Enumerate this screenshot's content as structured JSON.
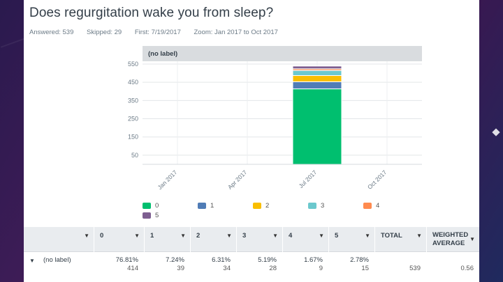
{
  "question": {
    "title": "Does regurgitation wake you from sleep?",
    "answered": "Answered: 539",
    "skipped": "Skipped: 29",
    "first": "First: 7/19/2017",
    "zoom": "Zoom: Jan 2017 to Oct 2017"
  },
  "chart_data": {
    "type": "bar",
    "stacked": true,
    "panel_label": "(no label)",
    "categories": [
      "Jan 2017",
      "Apr 2017",
      "Jul 2017",
      "Oct 2017"
    ],
    "ylim": [
      0,
      550
    ],
    "yticks": [
      50,
      150,
      250,
      350,
      450,
      550
    ],
    "ytick_labels": [
      "50",
      "150",
      "250",
      "350",
      "450",
      "550"
    ],
    "series": [
      {
        "name": "0",
        "color": "#00bf6f",
        "values": [
          0,
          0,
          414,
          0
        ]
      },
      {
        "name": "1",
        "color": "#507cb6",
        "values": [
          0,
          0,
          39,
          0
        ]
      },
      {
        "name": "2",
        "color": "#f9be00",
        "values": [
          0,
          0,
          34,
          0
        ]
      },
      {
        "name": "3",
        "color": "#6bc8cd",
        "values": [
          0,
          0,
          28,
          0
        ]
      },
      {
        "name": "4",
        "color": "#ff8b4f",
        "values": [
          0,
          0,
          9,
          0
        ]
      },
      {
        "name": "5",
        "color": "#7d5e90",
        "values": [
          0,
          0,
          15,
          0
        ]
      }
    ]
  },
  "table": {
    "headers": [
      "",
      "0",
      "1",
      "2",
      "3",
      "4",
      "5",
      "TOTAL",
      "WEIGHTED AVERAGE"
    ],
    "weighted_line1": "WEIGHTED",
    "weighted_line2": "AVERAGE",
    "row": {
      "label": "(no label)",
      "cells": [
        {
          "pct": "76.81%",
          "count": "414"
        },
        {
          "pct": "7.24%",
          "count": "39"
        },
        {
          "pct": "6.31%",
          "count": "34"
        },
        {
          "pct": "5.19%",
          "count": "28"
        },
        {
          "pct": "1.67%",
          "count": "9"
        },
        {
          "pct": "2.78%",
          "count": "15"
        }
      ],
      "total": "539",
      "weighted_average": "0.56"
    }
  }
}
